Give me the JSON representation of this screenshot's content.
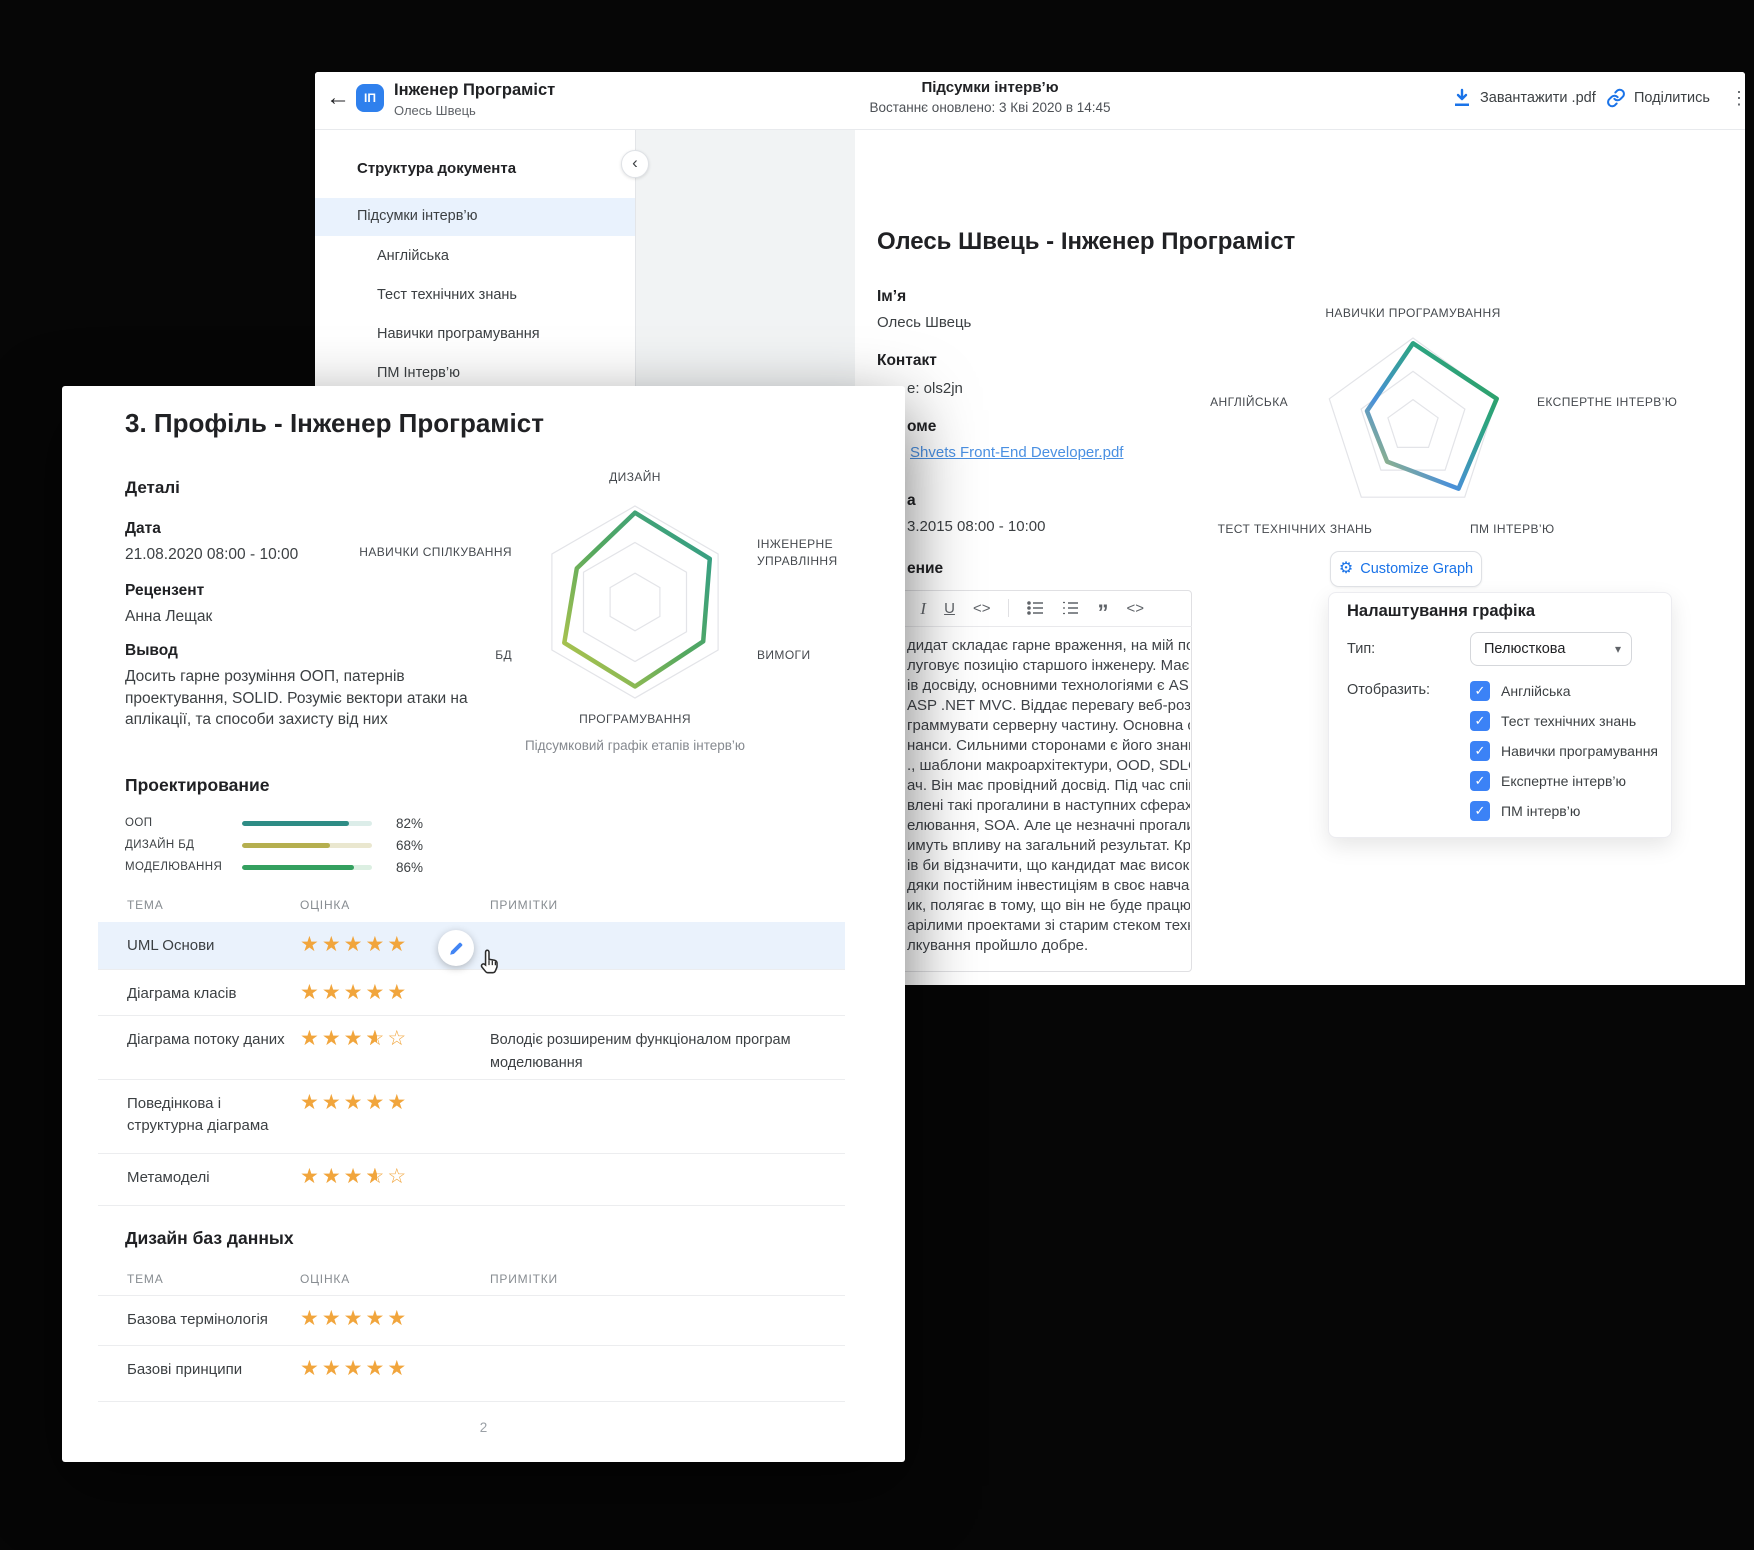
{
  "icons": {
    "back_arrow": "←",
    "avatar_initials": "ІП",
    "collapse": "‹",
    "more_dot": "⋮",
    "gear": "⚙",
    "caret": "▾",
    "check": "✓",
    "italic": "I",
    "underline": "U",
    "inline_code": "<>",
    "code_block": "<>",
    "quote": "”"
  },
  "window": {
    "header": {
      "title": "Інженер Програміст",
      "subtitle": "Олесь Швець",
      "center_title": "Підсумки інтерв’ю",
      "center_updated": "Востаннє оновлено: 3 Кві 2020 в 14:45",
      "download_label": "Завантажити .pdf",
      "share_label": "Поділитись"
    },
    "sidebar": {
      "title": "Структура документа",
      "active_item": "Підсумки інтерв’ю",
      "items": [
        "Англійська",
        "Тест технічних знань",
        "Навички програмування",
        "ПМ Інтерв’ю"
      ]
    },
    "document": {
      "heading": "Олесь Швець - Інженер Програміст",
      "name_label": "Ім’я",
      "name_value": "Олесь Швець",
      "contact_label": "Контакт",
      "contact_value_fragment": "е: ols2jn",
      "resume_label_fragment": "оме",
      "resume_link_fragment": "Shvets Front-End Developer.pdf",
      "date_label_fragment": "а",
      "date_value_fragment": "3.2015  08:00 - 10:00",
      "section_label_fragment": "ение"
    },
    "radar": {
      "type": "radar-pentagon",
      "labels": [
        "НАВИЧКИ ПРОГРАМУВАННЯ",
        "ЕКСПЕРТНЕ ІНТЕРВ’Ю",
        "ПМ ІНТЕРВ’Ю",
        "ТЕСТ ТЕХНІЧНИХ ЗНАНЬ",
        "АНГЛІЙСЬКА"
      ],
      "values": [
        0.94,
        1.0,
        0.88,
        0.5,
        0.55
      ],
      "gradient": [
        "#C9CE4A",
        "#4A90D9",
        "#2DA483",
        "#2E9E52"
      ]
    },
    "customize_button": "Customize Graph",
    "graph_settings": {
      "title": "Налаштування графіка",
      "type_label": "Тип:",
      "type_value": "Пелюсткова",
      "display_label": "Отобразить:",
      "options": [
        "Англійська",
        "Тест технічних знань",
        "Навички програмування",
        "Експертне інтерв’ю",
        "ПМ інтерв’ю"
      ],
      "options_checked": [
        true,
        true,
        true,
        true,
        true
      ]
    },
    "editor": {
      "toolbar_icons": [
        "italic-icon",
        "underline-icon",
        "inline-code-icon",
        "bulleted-list-icon",
        "numbered-list-icon",
        "quote-icon",
        "code-block-icon"
      ],
      "lines": [
        "дидат складає гарне враження, на мій погляд",
        "луговує позицію старшого інженеру. Має понад 9",
        "ів досвіду, основними технологіями є ASP.NET Web API",
        "ASP .NET MVC. Віддає перевагу веб-розробці, любить",
        "граммувати серверну частину. Основна сф. роботи",
        "нанси. Сильними сторонами є його знання .Net core,",
        "., шаблони макроархітектури, OOD, SDLC, оцінювання",
        "ач. Він має провідний досвід. Під час співбесіди були",
        "влені такі прогалини в наступних сферах: контекстне",
        "елювання, SOA. Але це незначні прогалини, які не",
        "имуть впливу на загальний результат. Крім того, я",
        "ів би відзначити, що кандидат має високий потенціал",
        "дяки постійним інвестиціям в своє навчання. Головний",
        "ик, полягає в тому, що він не буде працювати над",
        "арілими проектами зі старим стеком технологій.",
        "лкування пройшло добре."
      ]
    }
  },
  "page": {
    "heading": "3. Профіль - Інженер Програміст",
    "details_label": "Деталі",
    "date_label": "Дата",
    "date_value": "21.08.2020  08:00 - 10:00",
    "reviewer_label": "Рецензент",
    "reviewer_value": "Анна Лещак",
    "conclusion_label": "Вывод",
    "conclusion_text": "Досить гарне розуміння ООП, патернів проектування, SOLID. Розуміє вектори атаки на аплікації, та способи захисту від них",
    "radar": {
      "type": "radar-hexagon",
      "labels": [
        "ДИЗАЙН",
        "ІНЖЕНЕРНЕ УПРАВЛІННЯ",
        "ВИМОГИ",
        "ПРОГРАМУВАННЯ",
        "БД",
        "НАВИЧКИ СПІЛКУВАННЯ"
      ],
      "values": [
        0.93,
        0.9,
        0.82,
        0.88,
        0.85,
        0.7
      ],
      "gradient": [
        "#BFC94A",
        "#55A85F",
        "#2E9D8E"
      ],
      "caption": "Підсумковий графік етапів інтерв’ю"
    },
    "skills_title": "Проектирование",
    "skills": [
      {
        "label": "ООП",
        "value": 82,
        "pct": "82%",
        "color": "#2E8C85",
        "track": "#DCEDE9"
      },
      {
        "label": "ДИЗАЙН БД",
        "value": 68,
        "pct": "68%",
        "color": "#B5AF4F",
        "track": "#EAE7CF"
      },
      {
        "label": "МОДЕЛЮВАННЯ",
        "value": 86,
        "pct": "86%",
        "color": "#34A05F",
        "track": "#DCEFE2"
      }
    ],
    "table_headers": [
      "ТЕМА",
      "ОЦІНКА",
      "ПРИМІТКИ"
    ],
    "uml_table": {
      "rows": [
        {
          "topic": "UML Основи",
          "stars": 5,
          "note": ""
        },
        {
          "topic": "Діаграма класів",
          "stars": 5,
          "note": ""
        },
        {
          "topic": "Діаграма потоку даних",
          "stars": 3.5,
          "note": "Володіє розширеним функціоналом програм моделювання"
        },
        {
          "topic": "Поведінкова і структурна діаграма",
          "stars": 5,
          "note": ""
        },
        {
          "topic": "Метамоделі",
          "stars": 3.5,
          "note": ""
        }
      ]
    },
    "db_title": "Дизайн баз данных",
    "db_table": {
      "rows": [
        {
          "topic": "Базова термінологія",
          "stars": 5,
          "note": ""
        },
        {
          "topic": "Базові принципи",
          "stars": 5,
          "note": ""
        }
      ]
    },
    "page_number": "2"
  }
}
